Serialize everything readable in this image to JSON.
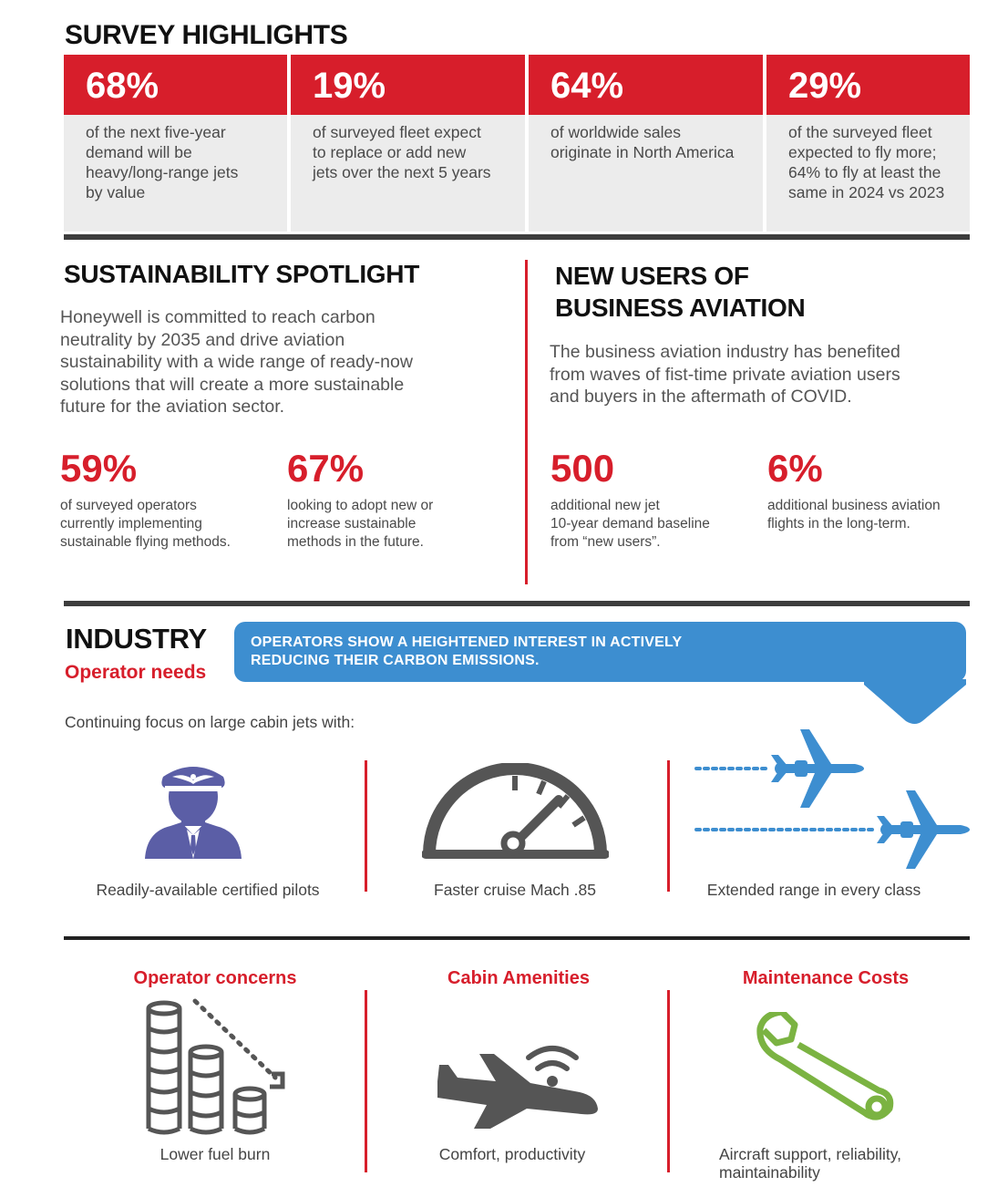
{
  "survey": {
    "title": "SURVEY HIGHLIGHTS",
    "cards": [
      {
        "value": "68%",
        "text": [
          "of the next five-year",
          "demand will be",
          "heavy/long-range jets",
          "by value"
        ]
      },
      {
        "value": "19%",
        "text": [
          "of surveyed fleet expect",
          "to replace or add new",
          "jets over the next 5 years"
        ]
      },
      {
        "value": "64%",
        "text": [
          "of worldwide sales",
          "originate in North America"
        ]
      },
      {
        "value": "29%",
        "text": [
          "of the surveyed fleet",
          "expected to fly more;",
          "64% to fly at least the",
          "same in 2024 vs 2023"
        ]
      }
    ]
  },
  "sustainability": {
    "title": "SUSTAINABILITY SPOTLIGHT",
    "paragraph": [
      "Honeywell is committed to reach carbon",
      "neutrality by 2035 and drive aviation",
      "sustainability with a wide range of ready-now",
      "solutions that will create a more sustainable",
      "future for the aviation sector."
    ],
    "stats": [
      {
        "value": "59%",
        "text": [
          "of surveyed operators",
          "currently implementing",
          "sustainable flying methods."
        ]
      },
      {
        "value": "67%",
        "text": [
          "looking to adopt new or",
          "increase sustainable",
          "methods in the future."
        ]
      }
    ]
  },
  "new_users": {
    "title": [
      "NEW USERS OF",
      "BUSINESS AVIATION"
    ],
    "paragraph": [
      "The business aviation industry has benefited",
      "from waves of fist-time private aviation users",
      "and buyers in the aftermath of COVID."
    ],
    "stats": [
      {
        "value": "500",
        "text": [
          "additional new jet",
          "10-year demand baseline",
          "from “new users”."
        ]
      },
      {
        "value": "6%",
        "text": [
          "additional business aviation",
          "flights in the long-term."
        ]
      }
    ]
  },
  "industry": {
    "title": "INDUSTRY",
    "subtitle": "Operator needs",
    "callout": [
      "OPERATORS SHOW A HEIGHTENED INTEREST IN ACTIVELY",
      "REDUCING THEIR CARBON EMISSIONS."
    ],
    "focus": "Continuing focus on large cabin jets with:",
    "needs": [
      {
        "icon": "pilot-icon",
        "caption": "Readily-available certified pilots"
      },
      {
        "icon": "speedometer-icon",
        "caption": "Faster cruise Mach .85"
      },
      {
        "icon": "airplanes-icon",
        "caption": "Extended range in every class"
      }
    ]
  },
  "concerns": [
    {
      "title": "Operator concerns",
      "icon": "fuel-coins-icon",
      "caption": [
        "Lower fuel burn"
      ]
    },
    {
      "title": "Cabin Amenities",
      "icon": "plane-wifi-icon",
      "caption": [
        "Comfort, productivity"
      ]
    },
    {
      "title": "Maintenance Costs",
      "icon": "wrench-icon",
      "caption": [
        "Aircraft support, reliability,",
        "maintainability"
      ]
    }
  ],
  "colors": {
    "red": "#d71e2b",
    "blue": "#3d8ed0",
    "purple": "#5b5ea6",
    "gray": "#555555",
    "green": "#7bb342"
  }
}
